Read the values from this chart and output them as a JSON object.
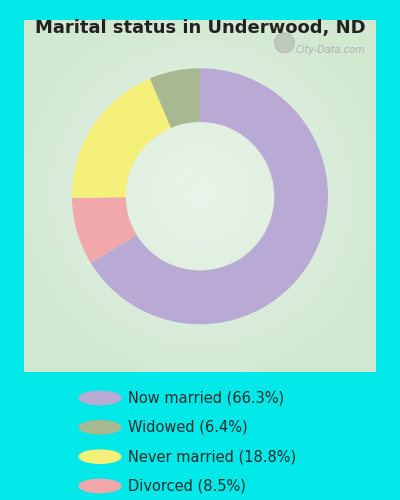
{
  "title": "Marital status in Underwood, ND",
  "categories": [
    "Now married",
    "Widowed",
    "Never married",
    "Divorced"
  ],
  "values": [
    66.3,
    6.4,
    18.8,
    8.5
  ],
  "colors": [
    "#b8aad4",
    "#a8b890",
    "#f5f07a",
    "#f0a8aa"
  ],
  "legend_labels": [
    "Now married (66.3%)",
    "Widowed (6.4%)",
    "Never married (18.8%)",
    "Divorced (8.5%)"
  ],
  "bg_cyan": "#00e8e8",
  "bg_chart_color1": "#cce8cc",
  "bg_chart_color2": "#e8f4e8",
  "title_fontsize": 13,
  "legend_fontsize": 10.5,
  "watermark": "City-Data.com",
  "donut_width": 0.42,
  "wedge_order": [
    0,
    3,
    2,
    1
  ],
  "start_angle": 90
}
